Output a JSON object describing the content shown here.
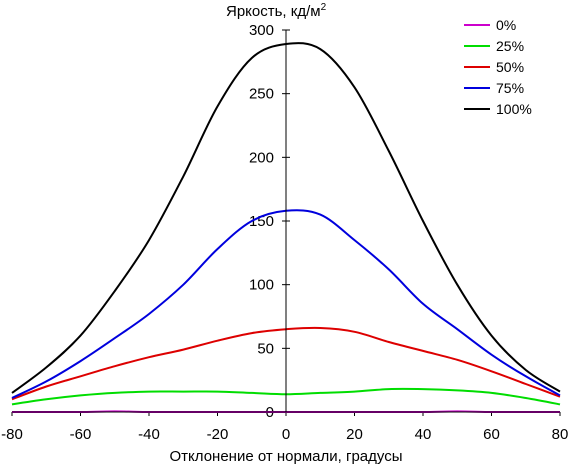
{
  "chart_data": {
    "type": "line",
    "title": "",
    "ylabel": "Яркость, кд/м",
    "ylabel_superscript": "2",
    "xlabel": "Отклонение от нормали, градусы",
    "xlim": [
      -80,
      80
    ],
    "ylim": [
      0,
      300
    ],
    "xticks": [
      -80,
      -60,
      -40,
      -20,
      0,
      20,
      40,
      60,
      80
    ],
    "yticks": [
      0,
      50,
      100,
      150,
      200,
      250,
      300
    ],
    "grid": false,
    "legend_position": "top-right",
    "x": [
      -80,
      -70,
      -60,
      -50,
      -40,
      -30,
      -20,
      -10,
      0,
      10,
      20,
      30,
      40,
      50,
      60,
      70,
      80
    ],
    "series": [
      {
        "name": "0%",
        "color": "#cc00cc",
        "values": [
          0,
          0,
          0,
          0.5,
          0,
          0,
          0,
          0,
          0,
          0,
          0,
          0,
          0,
          0.5,
          0,
          0,
          0
        ]
      },
      {
        "name": "25%",
        "color": "#00dd00",
        "values": [
          6,
          10,
          13,
          15,
          16,
          16,
          16,
          15,
          14,
          15,
          16,
          18,
          18,
          17,
          15,
          11,
          6
        ]
      },
      {
        "name": "50%",
        "color": "#dd0000",
        "values": [
          10,
          20,
          28,
          36,
          43,
          49,
          56,
          62,
          65,
          66,
          63,
          55,
          48,
          41,
          32,
          22,
          12
        ]
      },
      {
        "name": "75%",
        "color": "#0000dd",
        "values": [
          11,
          24,
          40,
          58,
          77,
          100,
          128,
          150,
          158,
          155,
          135,
          112,
          85,
          65,
          45,
          28,
          13
        ]
      },
      {
        "name": "100%",
        "color": "#000000",
        "values": [
          15,
          35,
          60,
          95,
          135,
          185,
          240,
          278,
          289,
          285,
          255,
          205,
          150,
          100,
          60,
          33,
          16
        ]
      }
    ]
  }
}
